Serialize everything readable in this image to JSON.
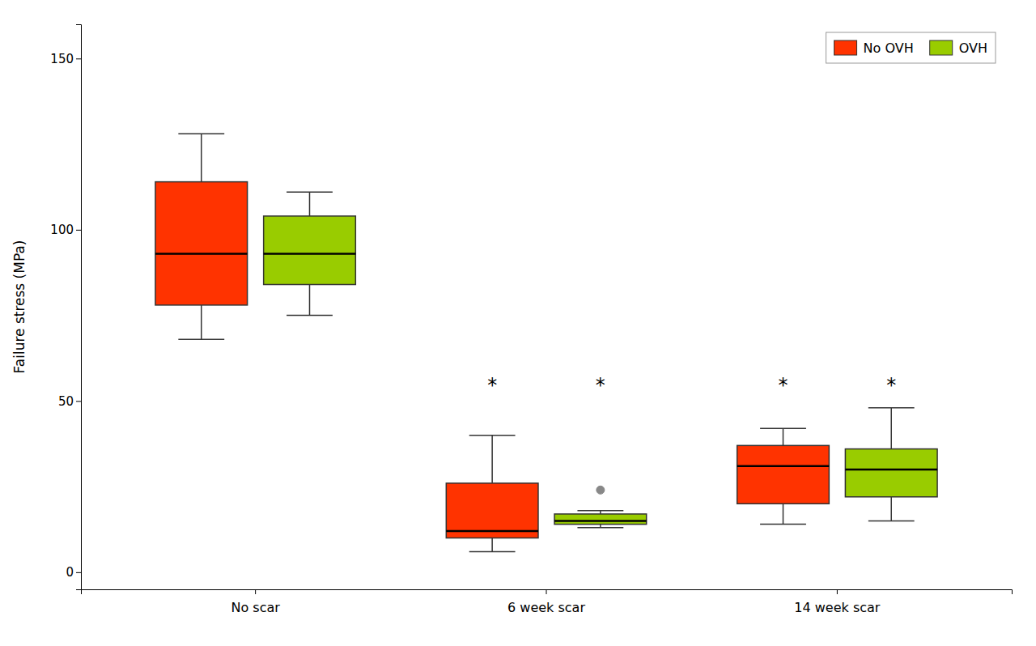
{
  "chart_data": {
    "type": "box",
    "ylabel": "Failure stress (MPa)",
    "categories": [
      "No scar",
      "6 week scar",
      "14 week scar"
    ],
    "series": [
      {
        "name": "No OVH",
        "color": "#FF3300",
        "values": [
          {
            "whislo": 68,
            "q1": 78,
            "med": 93,
            "q3": 114,
            "whishi": 128
          },
          {
            "whislo": 6,
            "q1": 10,
            "med": 12,
            "q3": 26,
            "whishi": 40
          },
          {
            "whislo": 14,
            "q1": 20,
            "med": 31,
            "q3": 37,
            "whishi": 42
          }
        ],
        "fliers": [
          [],
          [],
          []
        ]
      },
      {
        "name": "OVH",
        "color": "#99CC00",
        "values": [
          {
            "whislo": 75,
            "q1": 84,
            "med": 93,
            "q3": 104,
            "whishi": 111
          },
          {
            "whislo": 13,
            "q1": 14,
            "med": 15,
            "q3": 17,
            "whishi": 18
          },
          {
            "whislo": 15,
            "q1": 22,
            "med": 30,
            "q3": 36,
            "whishi": 48
          }
        ],
        "fliers": [
          [],
          [
            24
          ],
          []
        ]
      }
    ],
    "annotations": [
      {
        "text": "*",
        "category": "6 week scar",
        "series": "No OVH",
        "y": 56
      },
      {
        "text": "*",
        "category": "6 week scar",
        "series": "OVH",
        "y": 56
      },
      {
        "text": "*",
        "category": "14 week scar",
        "series": "No OVH",
        "y": 56
      },
      {
        "text": "*",
        "category": "14 week scar",
        "series": "OVH",
        "y": 56
      }
    ],
    "ylim": [
      -5,
      160
    ],
    "yticks": [
      0,
      50,
      100,
      150
    ],
    "grid": false,
    "legend": "upper right"
  }
}
